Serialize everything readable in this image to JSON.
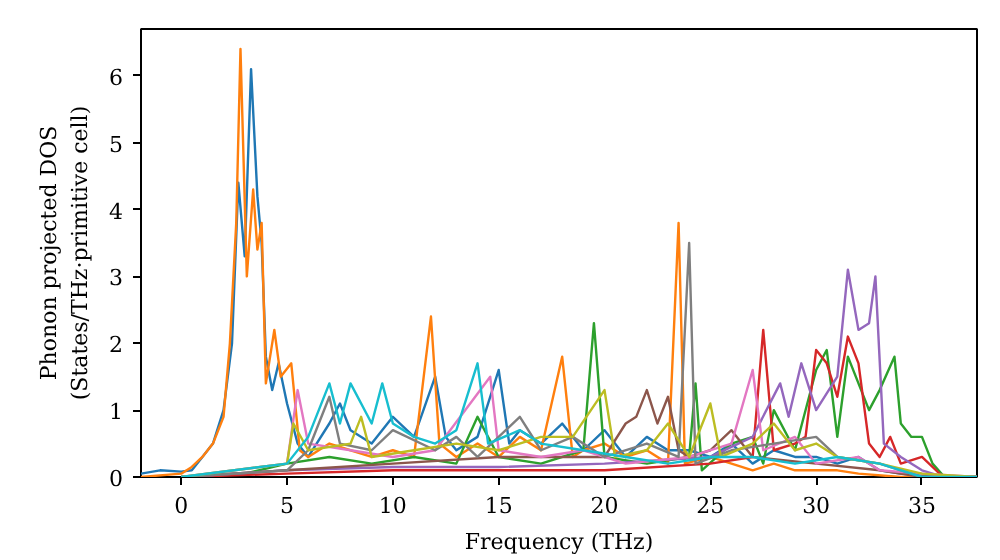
{
  "chart_data": {
    "type": "line",
    "xlabel": "Frequency (THz)",
    "ylabel": "Phonon projected DOS\n(States/THz·primitive cell)",
    "xlim": [
      -1.9,
      37.6
    ],
    "ylim": [
      0,
      6.7
    ],
    "xticks": [
      0,
      5,
      10,
      15,
      20,
      25,
      30,
      35
    ],
    "yticks": [
      0,
      1,
      2,
      3,
      4,
      5,
      6
    ],
    "grid": false,
    "series": [
      {
        "color": "#1f77b4",
        "x": [
          -1.9,
          -1,
          0,
          0.5,
          1,
          1.5,
          2,
          2.4,
          2.7,
          3,
          3.3,
          3.6,
          3.8,
          4,
          4.3,
          4.6,
          5,
          5.5,
          6,
          7,
          7.5,
          8,
          9,
          10,
          11,
          12,
          12.5,
          13,
          14,
          15,
          15.5,
          16,
          17,
          18,
          19,
          20,
          21,
          22,
          23,
          24,
          25,
          26,
          27,
          28,
          29,
          30,
          31,
          32,
          33,
          34,
          35,
          36,
          37.6
        ],
        "values": [
          0.05,
          0.1,
          0.08,
          0.1,
          0.3,
          0.5,
          1.0,
          2.0,
          4.4,
          3.3,
          6.1,
          4.2,
          3.5,
          1.8,
          1.3,
          1.7,
          1.1,
          0.5,
          0.3,
          0.8,
          1.1,
          0.7,
          0.5,
          0.9,
          0.6,
          1.5,
          0.6,
          0.4,
          0.6,
          1.6,
          0.5,
          0.7,
          0.5,
          0.8,
          0.4,
          0.7,
          0.3,
          0.6,
          0.4,
          0.4,
          0.3,
          0.5,
          0.2,
          0.4,
          0.3,
          0.3,
          0.2,
          0.3,
          0.1,
          0.05,
          0.02,
          0,
          0
        ]
      },
      {
        "color": "#ff7f0e",
        "x": [
          -1.9,
          0,
          0.5,
          1,
          1.5,
          2,
          2.3,
          2.6,
          2.8,
          3.1,
          3.4,
          3.6,
          3.8,
          4,
          4.4,
          4.7,
          5.2,
          5.6,
          6,
          7,
          8,
          9,
          10,
          11,
          11.8,
          12.2,
          13,
          14,
          15,
          16,
          17,
          18,
          18.5,
          19,
          20,
          21,
          22,
          23,
          23.5,
          23.8,
          25,
          26,
          27,
          28,
          29,
          30,
          31,
          32,
          34,
          37.6
        ],
        "values": [
          0,
          0.05,
          0.15,
          0.3,
          0.5,
          0.9,
          2.0,
          3.8,
          6.4,
          3.0,
          4.3,
          3.4,
          3.8,
          1.4,
          2.2,
          1.5,
          1.7,
          0.4,
          0.3,
          0.5,
          0.4,
          0.3,
          0.4,
          0.3,
          2.4,
          0.5,
          0.3,
          0.5,
          0.3,
          0.6,
          0.4,
          1.8,
          0.3,
          0.4,
          0.5,
          0.3,
          0.4,
          0.2,
          3.8,
          0.2,
          0.3,
          0.2,
          0.1,
          0.2,
          0.1,
          0.1,
          0.1,
          0.05,
          0,
          0
        ]
      },
      {
        "color": "#2ca02c",
        "x": [
          0,
          3,
          5,
          7,
          9,
          11,
          13,
          14,
          15,
          17,
          19,
          19.5,
          20,
          22,
          24,
          24.3,
          24.6,
          26,
          27,
          27.5,
          28,
          29,
          30,
          30.5,
          31,
          31.5,
          32,
          32.5,
          33,
          33.7,
          34,
          34.5,
          35,
          35.5,
          36,
          37.6
        ],
        "values": [
          0,
          0.05,
          0.2,
          0.3,
          0.2,
          0.3,
          0.2,
          0.9,
          0.3,
          0.2,
          0.4,
          2.3,
          0.3,
          0.2,
          0.3,
          1.4,
          0.1,
          0.5,
          0.6,
          0.2,
          1.0,
          0.4,
          1.6,
          1.9,
          0.6,
          1.8,
          1.4,
          1.0,
          1.3,
          1.8,
          0.8,
          0.6,
          0.6,
          0.2,
          0.02,
          0
        ]
      },
      {
        "color": "#d62728",
        "x": [
          0,
          5,
          10,
          15,
          20,
          25,
          27,
          27.5,
          28,
          29,
          29.5,
          30,
          30.5,
          31,
          31.5,
          32,
          32.5,
          33,
          33.5,
          34,
          35,
          36,
          37.6
        ],
        "values": [
          0,
          0.05,
          0.1,
          0.1,
          0.1,
          0.2,
          0.3,
          2.2,
          0.4,
          0.5,
          0.6,
          1.9,
          1.7,
          1.2,
          2.1,
          1.7,
          0.5,
          0.3,
          0.6,
          0.2,
          0.3,
          0,
          0
        ]
      },
      {
        "color": "#9467bd",
        "x": [
          0,
          5,
          10,
          15,
          20,
          25,
          27,
          28.3,
          28.7,
          29.3,
          30,
          31,
          31.5,
          32,
          32.5,
          32.8,
          33.2,
          34,
          35,
          36,
          37.6
        ],
        "values": [
          0,
          0.1,
          0.15,
          0.15,
          0.2,
          0.3,
          0.6,
          1.4,
          0.9,
          1.7,
          1.0,
          1.5,
          3.1,
          2.2,
          2.3,
          3.0,
          0.5,
          0.3,
          0.1,
          0,
          0
        ]
      },
      {
        "color": "#8c564b",
        "x": [
          0,
          5,
          10,
          15,
          20,
          21,
          21.5,
          22,
          22.5,
          23,
          23.5,
          24,
          25,
          26,
          27,
          30,
          33,
          35,
          37.6
        ],
        "values": [
          0,
          0.1,
          0.2,
          0.3,
          0.3,
          0.8,
          0.9,
          1.3,
          0.8,
          1.2,
          0.4,
          0.3,
          0.4,
          0.7,
          0.3,
          0.2,
          0.1,
          0,
          0
        ]
      },
      {
        "color": "#e377c2",
        "x": [
          0,
          5,
          5.5,
          6,
          8,
          10,
          12,
          14.6,
          15,
          17,
          19,
          21,
          24,
          26,
          27,
          27.5,
          29,
          30,
          32,
          33,
          35,
          37.6
        ],
        "values": [
          0,
          0.2,
          1.3,
          0.5,
          0.4,
          0.3,
          0.4,
          1.5,
          0.4,
          0.3,
          0.4,
          0.2,
          0.3,
          0.5,
          1.6,
          0.4,
          0.6,
          0.2,
          0.3,
          0.1,
          0.05,
          0
        ]
      },
      {
        "color": "#7f7f7f",
        "x": [
          0,
          5,
          6,
          7,
          7.5,
          9,
          10,
          12,
          13,
          14,
          16,
          17,
          18.5,
          20,
          22,
          23.5,
          24,
          24.3,
          26,
          28,
          30,
          31,
          33,
          35,
          37.6
        ],
        "values": [
          0,
          0.1,
          0.4,
          1.2,
          0.5,
          0.4,
          0.7,
          0.4,
          0.6,
          0.3,
          0.9,
          0.4,
          0.6,
          0.3,
          0.5,
          0.3,
          3.5,
          0.2,
          0.4,
          0.5,
          0.6,
          0.3,
          0.2,
          0,
          0
        ]
      },
      {
        "color": "#bcbd22",
        "x": [
          0,
          5,
          5.3,
          6,
          8,
          8.5,
          9,
          11,
          13,
          15,
          17,
          18.5,
          20,
          20.5,
          22,
          23,
          24,
          25,
          25.5,
          27,
          28,
          29,
          30,
          31,
          33,
          35,
          37.6
        ],
        "values": [
          0,
          0.2,
          0.8,
          0.4,
          0.5,
          0.9,
          0.3,
          0.4,
          0.5,
          0.4,
          0.6,
          0.6,
          1.3,
          0.3,
          0.4,
          0.8,
          0.3,
          1.1,
          0.3,
          0.5,
          0.8,
          0.4,
          0.5,
          0.3,
          0.2,
          0.05,
          0
        ]
      },
      {
        "color": "#17becf",
        "x": [
          0,
          5,
          6,
          7,
          7.5,
          8,
          9,
          9.5,
          10,
          11,
          12,
          13,
          14,
          14.5,
          16,
          17,
          19,
          21,
          23,
          25,
          27,
          29,
          31,
          33,
          35,
          37.6
        ],
        "values": [
          0,
          0.2,
          0.6,
          1.4,
          0.8,
          1.4,
          0.8,
          1.4,
          0.8,
          0.6,
          0.5,
          0.7,
          1.7,
          0.5,
          0.7,
          0.5,
          0.4,
          0.3,
          0.2,
          0.3,
          0.3,
          0.2,
          0.3,
          0.2,
          0,
          0
        ]
      }
    ]
  }
}
